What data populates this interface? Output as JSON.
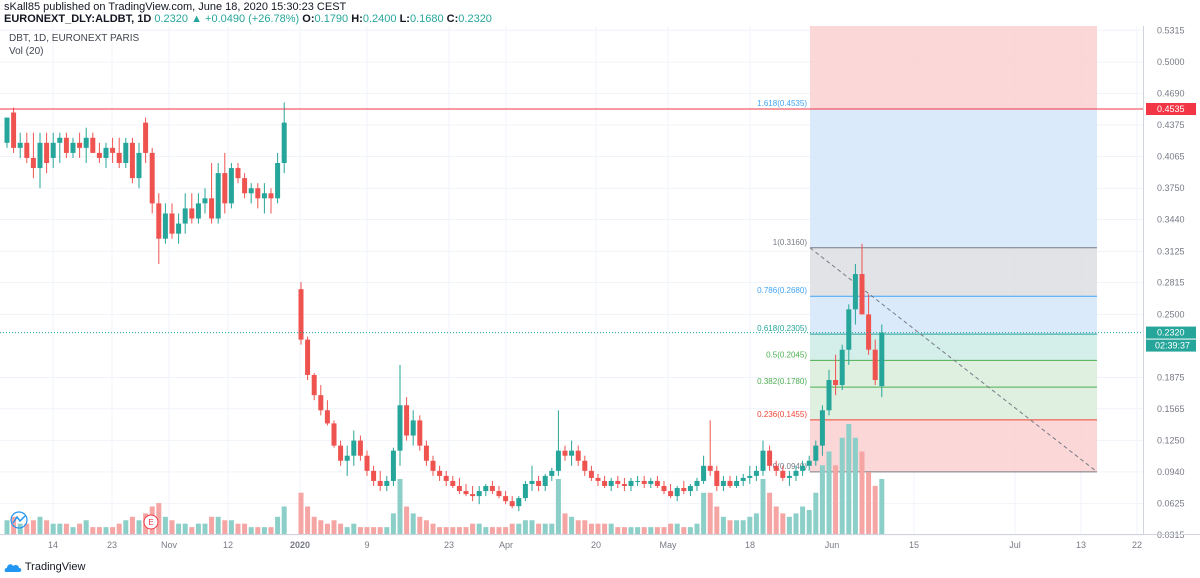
{
  "header": {
    "published": "sKall85 published on TradingView.com, June 18, 2020 15:30:23 CEST",
    "symbol": "EURONEXT_DLY:ALDBT, 1D",
    "last": "0.2320",
    "change": "▲ +0.0490 (+26.78%)",
    "o_label": "O:",
    "o": "0.1790",
    "h_label": "H:",
    "h": "0.2400",
    "l_label": "L:",
    "l": "0.1680",
    "c_label": "C:",
    "c": "0.2320"
  },
  "overlay": {
    "title": "DBT, 1D, EURONEXT PARIS",
    "vol": "Vol (20)"
  },
  "footer": {
    "brand": "TradingView"
  },
  "colors": {
    "up": "#26a69a",
    "down": "#ef5350",
    "upVol": "#8ccfc9",
    "downVol": "#f5a5a3"
  },
  "chart_data": {
    "type": "candlestick",
    "yticks": [
      "0.5315",
      "0.5000",
      "0.4690",
      "0.4375",
      "0.4065",
      "0.3750",
      "0.3440",
      "0.3125",
      "0.2815",
      "0.2500",
      "0.1875",
      "0.1565",
      "0.1250",
      "0.0940",
      "0.0625",
      "0.0315"
    ],
    "xticks": [
      "14",
      "23",
      "Nov",
      "12",
      "2020",
      "9",
      "23",
      "Apr",
      "20",
      "May",
      "18",
      "Jun",
      "15",
      "Jul",
      "13",
      "22"
    ],
    "resistance": {
      "value": 0.4535,
      "label": "0.4535"
    },
    "last_price": {
      "value": 0.232,
      "label": "0.2320",
      "countdown": "02:39:37"
    },
    "fib_levels": [
      {
        "ratio": "1.618",
        "value": 0.4535,
        "label": "1.618(0.4535)",
        "color": "#42a5f5"
      },
      {
        "ratio": "1",
        "value": 0.316,
        "label": "1(0.3160)",
        "color": "#787b86"
      },
      {
        "ratio": "0.786",
        "value": 0.268,
        "label": "0.786(0.2680)",
        "color": "#42a5f5"
      },
      {
        "ratio": "0.618",
        "value": 0.2305,
        "label": "0.618(0.2305)",
        "color": "#26a69a"
      },
      {
        "ratio": "0.5",
        "value": 0.2045,
        "label": "0.5(0.2045)",
        "color": "#4caf50"
      },
      {
        "ratio": "0.382",
        "value": 0.178,
        "label": "0.382(0.1780)",
        "color": "#4caf50"
      },
      {
        "ratio": "0.236",
        "value": 0.1455,
        "label": "0.236(0.1455)",
        "color": "#f44336"
      },
      {
        "ratio": "0",
        "value": 0.094,
        "label": "0(0.0940)",
        "color": "#787b86"
      }
    ],
    "candles": [
      [
        0.42,
        0.445,
        0.415,
        0.445,
        20
      ],
      [
        0.45,
        0.455,
        0.41,
        0.415,
        25
      ],
      [
        0.415,
        0.43,
        0.405,
        0.42,
        15
      ],
      [
        0.42,
        0.43,
        0.4,
        0.405,
        15
      ],
      [
        0.405,
        0.43,
        0.385,
        0.395,
        20
      ],
      [
        0.395,
        0.43,
        0.375,
        0.42,
        25
      ],
      [
        0.42,
        0.43,
        0.39,
        0.4,
        20
      ],
      [
        0.405,
        0.43,
        0.395,
        0.42,
        15
      ],
      [
        0.42,
        0.43,
        0.4,
        0.425,
        15
      ],
      [
        0.425,
        0.43,
        0.405,
        0.41,
        15
      ],
      [
        0.41,
        0.425,
        0.405,
        0.42,
        10
      ],
      [
        0.42,
        0.43,
        0.405,
        0.415,
        15
      ],
      [
        0.415,
        0.435,
        0.4,
        0.425,
        20
      ],
      [
        0.425,
        0.43,
        0.41,
        0.41,
        10
      ],
      [
        0.41,
        0.42,
        0.4,
        0.405,
        10
      ],
      [
        0.405,
        0.42,
        0.395,
        0.415,
        10
      ],
      [
        0.415,
        0.425,
        0.4,
        0.41,
        10
      ],
      [
        0.41,
        0.425,
        0.395,
        0.4,
        15
      ],
      [
        0.4,
        0.425,
        0.395,
        0.42,
        20
      ],
      [
        0.42,
        0.425,
        0.38,
        0.385,
        25
      ],
      [
        0.385,
        0.42,
        0.375,
        0.41,
        20
      ],
      [
        0.44,
        0.445,
        0.4,
        0.41,
        30
      ],
      [
        0.41,
        0.415,
        0.35,
        0.36,
        40
      ],
      [
        0.36,
        0.37,
        0.3,
        0.325,
        45
      ],
      [
        0.325,
        0.36,
        0.32,
        0.35,
        25
      ],
      [
        0.35,
        0.36,
        0.325,
        0.33,
        20
      ],
      [
        0.33,
        0.35,
        0.32,
        0.34,
        15
      ],
      [
        0.34,
        0.37,
        0.33,
        0.355,
        15
      ],
      [
        0.355,
        0.37,
        0.34,
        0.345,
        10
      ],
      [
        0.345,
        0.37,
        0.34,
        0.36,
        15
      ],
      [
        0.36,
        0.375,
        0.35,
        0.365,
        15
      ],
      [
        0.365,
        0.4,
        0.34,
        0.345,
        25
      ],
      [
        0.345,
        0.4,
        0.34,
        0.39,
        25
      ],
      [
        0.39,
        0.41,
        0.35,
        0.36,
        20
      ],
      [
        0.36,
        0.4,
        0.355,
        0.395,
        20
      ],
      [
        0.395,
        0.4,
        0.38,
        0.385,
        15
      ],
      [
        0.385,
        0.39,
        0.365,
        0.37,
        15
      ],
      [
        0.37,
        0.38,
        0.36,
        0.375,
        10
      ],
      [
        0.375,
        0.38,
        0.355,
        0.365,
        10
      ],
      [
        0.365,
        0.38,
        0.35,
        0.37,
        10
      ],
      [
        0.37,
        0.375,
        0.35,
        0.365,
        10
      ],
      [
        0.365,
        0.41,
        0.36,
        0.4,
        25
      ],
      [
        0.4,
        0.46,
        0.39,
        0.44,
        40
      ],
      [
        0.275,
        0.282,
        0.22,
        0.225,
        60
      ],
      [
        0.225,
        0.228,
        0.185,
        0.19,
        40
      ],
      [
        0.19,
        0.192,
        0.165,
        0.17,
        25
      ],
      [
        0.17,
        0.18,
        0.15,
        0.155,
        20
      ],
      [
        0.155,
        0.165,
        0.14,
        0.142,
        15
      ],
      [
        0.142,
        0.145,
        0.118,
        0.12,
        20
      ],
      [
        0.12,
        0.125,
        0.1,
        0.105,
        15
      ],
      [
        0.105,
        0.12,
        0.09,
        0.11,
        10
      ],
      [
        0.11,
        0.135,
        0.1,
        0.125,
        15
      ],
      [
        0.125,
        0.13,
        0.105,
        0.11,
        10
      ],
      [
        0.11,
        0.115,
        0.09,
        0.095,
        10
      ],
      [
        0.095,
        0.1,
        0.08,
        0.085,
        10
      ],
      [
        0.085,
        0.095,
        0.075,
        0.08,
        10
      ],
      [
        0.08,
        0.09,
        0.075,
        0.085,
        10
      ],
      [
        0.085,
        0.118,
        0.08,
        0.115,
        30
      ],
      [
        0.115,
        0.2,
        0.1,
        0.16,
        80
      ],
      [
        0.16,
        0.168,
        0.125,
        0.13,
        40
      ],
      [
        0.13,
        0.155,
        0.12,
        0.145,
        30
      ],
      [
        0.145,
        0.15,
        0.115,
        0.12,
        25
      ],
      [
        0.12,
        0.125,
        0.1,
        0.105,
        20
      ],
      [
        0.105,
        0.11,
        0.09,
        0.095,
        15
      ],
      [
        0.095,
        0.1,
        0.085,
        0.09,
        10
      ],
      [
        0.09,
        0.095,
        0.08,
        0.085,
        10
      ],
      [
        0.085,
        0.09,
        0.078,
        0.08,
        10
      ],
      [
        0.08,
        0.088,
        0.072,
        0.075,
        10
      ],
      [
        0.075,
        0.082,
        0.07,
        0.072,
        10
      ],
      [
        0.072,
        0.08,
        0.065,
        0.07,
        15
      ],
      [
        0.07,
        0.08,
        0.062,
        0.075,
        15
      ],
      [
        0.075,
        0.082,
        0.07,
        0.08,
        10
      ],
      [
        0.08,
        0.085,
        0.072,
        0.075,
        10
      ],
      [
        0.075,
        0.08,
        0.068,
        0.07,
        10
      ],
      [
        0.07,
        0.075,
        0.062,
        0.065,
        10
      ],
      [
        0.065,
        0.07,
        0.058,
        0.06,
        15
      ],
      [
        0.06,
        0.07,
        0.055,
        0.068,
        15
      ],
      [
        0.068,
        0.085,
        0.065,
        0.082,
        20
      ],
      [
        0.082,
        0.1,
        0.075,
        0.085,
        20
      ],
      [
        0.085,
        0.09,
        0.075,
        0.08,
        15
      ],
      [
        0.08,
        0.092,
        0.075,
        0.09,
        15
      ],
      [
        0.09,
        0.098,
        0.085,
        0.095,
        15
      ],
      [
        0.095,
        0.155,
        0.09,
        0.115,
        80
      ],
      [
        0.115,
        0.12,
        0.105,
        0.11,
        30
      ],
      [
        0.11,
        0.125,
        0.1,
        0.115,
        25
      ],
      [
        0.115,
        0.12,
        0.1,
        0.105,
        20
      ],
      [
        0.105,
        0.11,
        0.09,
        0.095,
        20
      ],
      [
        0.095,
        0.1,
        0.085,
        0.088,
        15
      ],
      [
        0.088,
        0.092,
        0.08,
        0.085,
        15
      ],
      [
        0.085,
        0.09,
        0.078,
        0.08,
        15
      ],
      [
        0.08,
        0.088,
        0.075,
        0.085,
        15
      ],
      [
        0.085,
        0.09,
        0.078,
        0.082,
        10
      ],
      [
        0.082,
        0.088,
        0.075,
        0.08,
        10
      ],
      [
        0.08,
        0.088,
        0.075,
        0.085,
        10
      ],
      [
        0.085,
        0.09,
        0.08,
        0.085,
        10
      ],
      [
        0.085,
        0.09,
        0.078,
        0.082,
        10
      ],
      [
        0.082,
        0.088,
        0.078,
        0.085,
        10
      ],
      [
        0.085,
        0.09,
        0.078,
        0.08,
        10
      ],
      [
        0.08,
        0.085,
        0.072,
        0.075,
        10
      ],
      [
        0.075,
        0.082,
        0.068,
        0.07,
        15
      ],
      [
        0.07,
        0.08,
        0.065,
        0.078,
        15
      ],
      [
        0.078,
        0.085,
        0.072,
        0.075,
        10
      ],
      [
        0.075,
        0.082,
        0.07,
        0.08,
        10
      ],
      [
        0.08,
        0.088,
        0.075,
        0.085,
        15
      ],
      [
        0.085,
        0.11,
        0.082,
        0.1,
        60
      ],
      [
        0.1,
        0.145,
        0.09,
        0.095,
        60
      ],
      [
        0.095,
        0.1,
        0.075,
        0.08,
        40
      ],
      [
        0.08,
        0.09,
        0.075,
        0.085,
        25
      ],
      [
        0.085,
        0.09,
        0.078,
        0.08,
        20
      ],
      [
        0.08,
        0.09,
        0.078,
        0.085,
        20
      ],
      [
        0.085,
        0.092,
        0.08,
        0.088,
        20
      ],
      [
        0.088,
        0.1,
        0.082,
        0.09,
        25
      ],
      [
        0.09,
        0.1,
        0.085,
        0.095,
        30
      ],
      [
        0.095,
        0.125,
        0.09,
        0.115,
        80
      ],
      [
        0.115,
        0.12,
        0.095,
        0.1,
        60
      ],
      [
        0.1,
        0.105,
        0.09,
        0.095,
        40
      ],
      [
        0.095,
        0.1,
        0.085,
        0.088,
        30
      ],
      [
        0.088,
        0.095,
        0.08,
        0.09,
        25
      ],
      [
        0.09,
        0.1,
        0.085,
        0.095,
        30
      ],
      [
        0.095,
        0.105,
        0.09,
        0.1,
        40
      ],
      [
        0.1,
        0.11,
        0.095,
        0.105,
        35
      ],
      [
        0.105,
        0.125,
        0.1,
        0.12,
        60
      ],
      [
        0.12,
        0.16,
        0.11,
        0.155,
        100
      ],
      [
        0.155,
        0.195,
        0.15,
        0.185,
        120
      ],
      [
        0.185,
        0.21,
        0.17,
        0.18,
        100
      ],
      [
        0.18,
        0.22,
        0.175,
        0.215,
        140
      ],
      [
        0.215,
        0.26,
        0.2,
        0.255,
        160
      ],
      [
        0.255,
        0.3,
        0.24,
        0.29,
        140
      ],
      [
        0.29,
        0.32,
        0.25,
        0.25,
        120
      ],
      [
        0.25,
        0.27,
        0.21,
        0.215,
        90
      ],
      [
        0.215,
        0.225,
        0.18,
        0.185,
        70
      ],
      [
        0.179,
        0.24,
        0.168,
        0.232,
        80
      ]
    ]
  }
}
